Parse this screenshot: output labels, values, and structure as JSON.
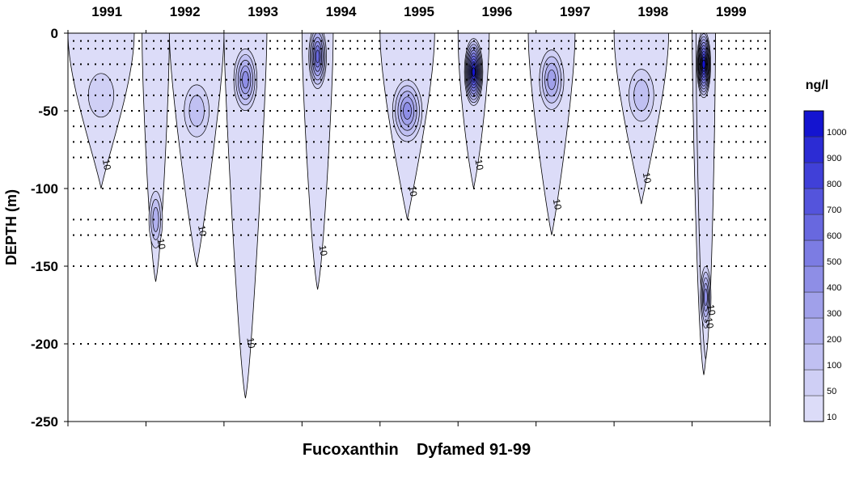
{
  "chart_data": {
    "type": "heatmap",
    "title": "Fucoxanthin    Dyfamed 91-99",
    "ylabel": "DEPTH (m)",
    "xlabel": "",
    "ylim": [
      -250,
      0
    ],
    "xlim": [
      1991,
      2000
    ],
    "year_labels": [
      "1991",
      "1992",
      "1993",
      "1994",
      "1995",
      "1996",
      "1997",
      "1998",
      "1999"
    ],
    "y_ticks": [
      0,
      -50,
      -100,
      -150,
      -200,
      -250
    ],
    "y_tick_labels": [
      "0",
      "-50",
      "-100",
      "-150",
      "-200",
      "-250"
    ],
    "contour_label": "10",
    "sample_depths": [
      -5,
      -10,
      -20,
      -30,
      -40,
      -50,
      -60,
      -70,
      -80,
      -100,
      -120,
      -130,
      -150,
      -200
    ],
    "colorbar": {
      "unit": "ng/l",
      "levels": [
        10,
        50,
        100,
        200,
        300,
        400,
        500,
        600,
        700,
        800,
        900,
        1000
      ],
      "labels": [
        "10",
        "50",
        "100",
        "200",
        "300",
        "400",
        "500",
        "600",
        "700",
        "800",
        "900",
        "1000"
      ],
      "colors": [
        "#dcdcf8",
        "#cfcff5",
        "#c0c0f2",
        "#b0b0ee",
        "#a0a0ea",
        "#8e8ee6",
        "#7c7ce3",
        "#6868df",
        "#5454dc",
        "#4040d8",
        "#2c2cd4",
        "#1414d0"
      ]
    },
    "blooms": [
      {
        "year_start": 1991.0,
        "year_end": 1991.85,
        "max_depth": -100,
        "peak_depth": -40,
        "peak_value": 50
      },
      {
        "year_start": 1991.95,
        "year_end": 1992.3,
        "max_depth": -160,
        "peak_depth": -120,
        "peak_value": 200
      },
      {
        "year_start": 1992.3,
        "year_end": 1993.0,
        "max_depth": -150,
        "peak_depth": -50,
        "peak_value": 100
      },
      {
        "year_start": 1993.0,
        "year_end": 1993.55,
        "max_depth": -235,
        "peak_depth": -30,
        "peak_value": 400
      },
      {
        "year_start": 1994.0,
        "year_end": 1994.4,
        "max_depth": -165,
        "peak_depth": -15,
        "peak_value": 600
      },
      {
        "year_start": 1995.0,
        "year_end": 1995.7,
        "max_depth": -120,
        "peak_depth": -50,
        "peak_value": 400
      },
      {
        "year_start": 1996.0,
        "year_end": 1996.4,
        "max_depth": -100,
        "peak_depth": -25,
        "peak_value": 1000
      },
      {
        "year_start": 1996.9,
        "year_end": 1997.5,
        "max_depth": -130,
        "peak_depth": -30,
        "peak_value": 300
      },
      {
        "year_start": 1998.0,
        "year_end": 1998.7,
        "max_depth": -110,
        "peak_depth": -40,
        "peak_value": 100
      },
      {
        "year_start": 1999.0,
        "year_end": 1999.3,
        "max_depth": -220,
        "peak_depth": -20,
        "peak_value": 1000
      },
      {
        "year_start": 1999.05,
        "year_end": 1999.3,
        "max_depth": -210,
        "peak_depth": -170,
        "peak_value": 400
      }
    ]
  }
}
